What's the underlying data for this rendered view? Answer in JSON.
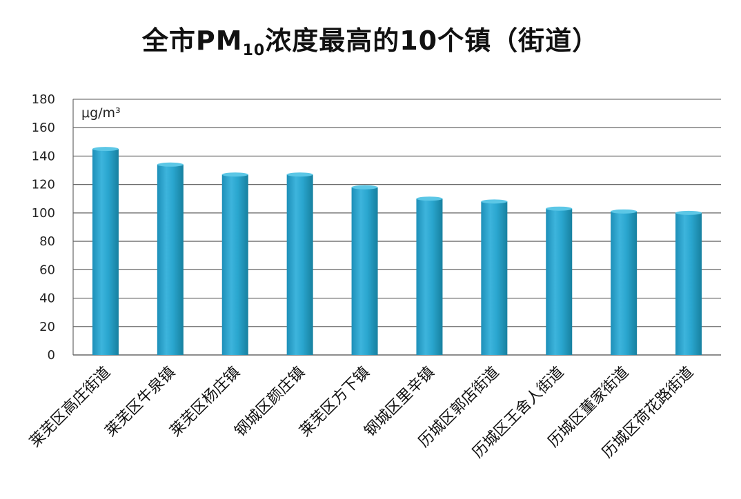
{
  "chart_data": {
    "type": "bar",
    "title_parts": {
      "before": "全市PM",
      "subscript": "10",
      "after": "浓度最高的10个镇（街道）"
    },
    "unit": "μg/m³",
    "xlabel": "",
    "ylabel": "",
    "ylim": [
      0,
      180
    ],
    "yticks": [
      0,
      20,
      40,
      60,
      80,
      100,
      120,
      140,
      160,
      180
    ],
    "grid": true,
    "categories": [
      "莱芜区高庄街道",
      "莱芜区牛泉镇",
      "莱芜区杨庄镇",
      "钢城区颜庄镇",
      "莱芜区方下镇",
      "钢城区里辛镇",
      "历城区郭店街道",
      "历城区王舍人街道",
      "历城区董家街道",
      "历城区荷花路街道"
    ],
    "values": [
      145,
      134,
      127,
      127,
      118,
      110,
      108,
      103,
      101,
      100
    ],
    "colors": {
      "bar": "#2aa6cf",
      "bar_highlight": "#5cc7e6",
      "bar_shadow": "#1a7fa3",
      "grid": "#555555",
      "axis": "#666666"
    }
  }
}
